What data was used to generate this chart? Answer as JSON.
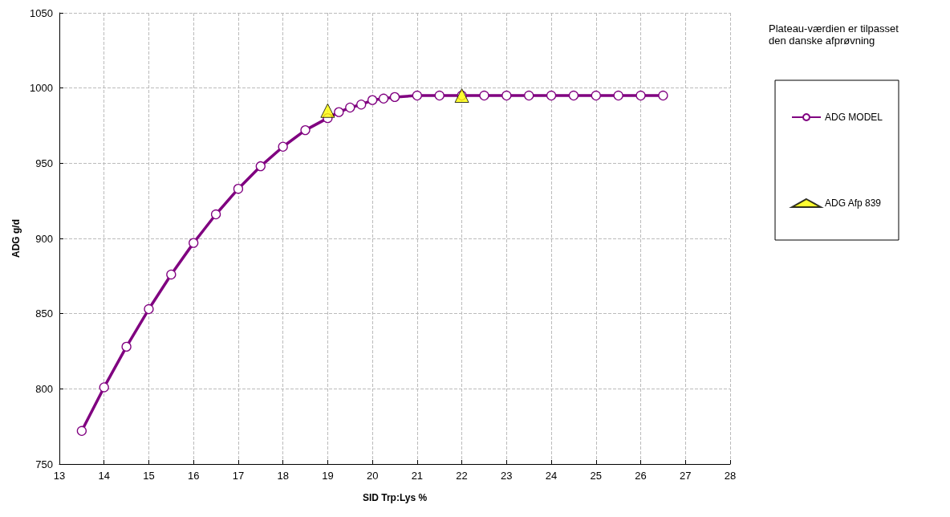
{
  "chart_data": {
    "type": "line",
    "xlabel": "SID Trp:Lys %",
    "ylabel": "ADG g/d",
    "annotations": [
      "Plateau-værdien er tilpasset\nden danske afprøvning"
    ],
    "xlim": [
      13,
      28
    ],
    "xticks": [
      13,
      14,
      15,
      16,
      17,
      18,
      19,
      20,
      21,
      22,
      23,
      24,
      25,
      26,
      27,
      28
    ],
    "ylim": [
      750,
      1050
    ],
    "yticks": [
      750,
      800,
      850,
      900,
      950,
      1000,
      1050
    ],
    "grid": true,
    "legend": "right",
    "line_style": "solid",
    "series": [
      {
        "name": "ADG MODEL",
        "marker": "circle",
        "color": "#800080",
        "x": [
          13.5,
          14,
          14.5,
          15,
          15.5,
          16,
          16.5,
          17,
          17.5,
          18,
          18.5,
          19,
          19.25,
          19.5,
          19.75,
          20,
          20.25,
          20.5,
          21,
          21.5,
          22,
          22.5,
          23,
          23.5,
          24,
          24.5,
          25,
          25.5,
          26,
          26.5
        ],
        "values": [
          772,
          801,
          828,
          853,
          876,
          897,
          916,
          933,
          948,
          961,
          972,
          980,
          984,
          987,
          989,
          992,
          993,
          994,
          995,
          995,
          995,
          995,
          995,
          995,
          995,
          995,
          995,
          995,
          995,
          995
        ]
      },
      {
        "name": "ADG Afp 839",
        "type": "scatter",
        "marker": "triangle",
        "color": "#ffff00",
        "x": [
          19,
          22
        ],
        "values": [
          985,
          995
        ]
      }
    ]
  }
}
